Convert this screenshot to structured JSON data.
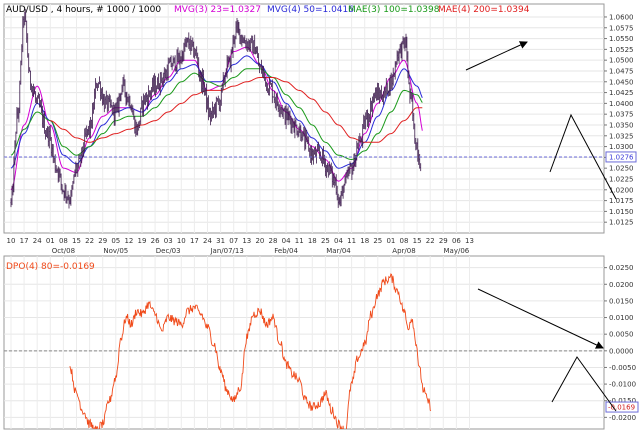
{
  "chart_data": [
    {
      "type": "line",
      "title": "AUD/USD , 4 hours, # 1000 / 1000",
      "indicators": [
        {
          "label": "MVG(3) 23=1.0327",
          "color": "#d400d4"
        },
        {
          "label": "MVG(4) 50=1.0416",
          "color": "#2b2bd8"
        },
        {
          "label": "MAE(3) 100=1.0398",
          "color": "#1a9a1a"
        },
        {
          "label": "MAE(4) 200=1.0394",
          "color": "#e02020"
        }
      ],
      "ylim": [
        1.01,
        1.063
      ],
      "y_ticks": [
        "1.0600",
        "1.0575",
        "1.0550",
        "1.0525",
        "1.0500",
        "1.0475",
        "1.0450",
        "1.0425",
        "1.0400",
        "1.0375",
        "1.0350",
        "1.0325",
        "1.0300",
        "1.0275",
        "1.0250",
        "1.0225",
        "1.0200",
        "1.0175",
        "1.0150",
        "1.0125"
      ],
      "y_tick_values": [
        1.06,
        1.0575,
        1.055,
        1.0525,
        1.05,
        1.0475,
        1.045,
        1.0425,
        1.04,
        1.0375,
        1.035,
        1.0325,
        1.03,
        1.0275,
        1.025,
        1.0225,
        1.02,
        1.0175,
        1.015,
        1.0125
      ],
      "current_price_label": "1.0276",
      "current_price": 1.0276,
      "x_ticks": [
        "10",
        "17",
        "24",
        "01",
        "08",
        "15",
        "22",
        "29",
        "05",
        "12",
        "19",
        "26",
        "03",
        "10",
        "17",
        "24",
        "31",
        "07",
        "13",
        "20",
        "28",
        "04",
        "11",
        "18",
        "25",
        "04",
        "11",
        "18",
        "25",
        "01",
        "08",
        "15",
        "22",
        "29",
        "06",
        "13"
      ],
      "x_tick_index": [
        0,
        1,
        2,
        3,
        4,
        5,
        6,
        7,
        8,
        9,
        10,
        11,
        12,
        13,
        14,
        15,
        16,
        17,
        18,
        19,
        20,
        21,
        22,
        23,
        24,
        25,
        26,
        27,
        28,
        29,
        30,
        31,
        32,
        33,
        34,
        35
      ],
      "month_labels": [
        {
          "label": "Oct/08",
          "tick": 4
        },
        {
          "label": "Nov/05",
          "tick": 8
        },
        {
          "label": "Dec/03",
          "tick": 12
        },
        {
          "label": "Jan/07/13",
          "tick": 16.5
        },
        {
          "label": "Feb/04",
          "tick": 21
        },
        {
          "label": "Mar/04",
          "tick": 25
        },
        {
          "label": "Apr/08",
          "tick": 30
        },
        {
          "label": "May/06",
          "tick": 34
        }
      ],
      "price_anchors": [
        [
          0,
          1.017
        ],
        [
          0.5,
          1.037
        ],
        [
          1,
          1.06
        ],
        [
          1.5,
          1.045
        ],
        [
          2,
          1.04
        ],
        [
          2.8,
          1.033
        ],
        [
          3.5,
          1.025
        ],
        [
          4,
          1.02
        ],
        [
          4.5,
          1.018
        ],
        [
          5,
          1.025
        ],
        [
          6,
          1.034
        ],
        [
          6.6,
          1.045
        ],
        [
          7.2,
          1.04
        ],
        [
          8,
          1.038
        ],
        [
          8.5,
          1.044
        ],
        [
          9,
          1.041
        ],
        [
          9.6,
          1.034
        ],
        [
          10.2,
          1.041
        ],
        [
          11,
          1.044
        ],
        [
          11.6,
          1.046
        ],
        [
          12.2,
          1.049
        ],
        [
          12.8,
          1.05
        ],
        [
          13.5,
          1.054
        ],
        [
          14,
          1.052
        ],
        [
          14.6,
          1.045
        ],
        [
          15.2,
          1.037
        ],
        [
          15.8,
          1.04
        ],
        [
          16.6,
          1.049
        ],
        [
          17.2,
          1.057
        ],
        [
          18,
          1.054
        ],
        [
          18.6,
          1.053
        ],
        [
          19,
          1.048
        ],
        [
          19.7,
          1.044
        ],
        [
          20.4,
          1.04
        ],
        [
          21,
          1.037
        ],
        [
          22,
          1.034
        ],
        [
          22.5,
          1.031
        ],
        [
          23,
          1.028
        ],
        [
          23.6,
          1.028
        ],
        [
          24.2,
          1.025
        ],
        [
          24.7,
          1.022
        ],
        [
          25.1,
          1.017
        ],
        [
          25.4,
          1.021
        ],
        [
          26,
          1.025
        ],
        [
          26.6,
          1.031
        ],
        [
          27.2,
          1.037
        ],
        [
          27.8,
          1.042
        ],
        [
          28.4,
          1.042
        ],
        [
          29,
          1.045
        ],
        [
          29.6,
          1.052
        ],
        [
          30.1,
          1.054
        ],
        [
          30.5,
          1.041
        ],
        [
          30.9,
          1.031
        ],
        [
          31.3,
          1.026
        ]
      ],
      "indicator_anchors": [
        [
          [
            0,
            1.02
          ],
          [
            1,
            1.035
          ],
          [
            2,
            1.044
          ],
          [
            3,
            1.035
          ],
          [
            4,
            1.025
          ],
          [
            5,
            1.024
          ],
          [
            6,
            1.032
          ],
          [
            7,
            1.037
          ],
          [
            8,
            1.039
          ],
          [
            9,
            1.039
          ],
          [
            10,
            1.038
          ],
          [
            11,
            1.042
          ],
          [
            12,
            1.046
          ],
          [
            13,
            1.05
          ],
          [
            14,
            1.05
          ],
          [
            15,
            1.043
          ],
          [
            16,
            1.044
          ],
          [
            17,
            1.052
          ],
          [
            18,
            1.053
          ],
          [
            19,
            1.049
          ],
          [
            20,
            1.043
          ],
          [
            21,
            1.038
          ],
          [
            22,
            1.034
          ],
          [
            23,
            1.03
          ],
          [
            24,
            1.027
          ],
          [
            25,
            1.022
          ],
          [
            26,
            1.025
          ],
          [
            27,
            1.033
          ],
          [
            28,
            1.04
          ],
          [
            29,
            1.046
          ],
          [
            30,
            1.05
          ],
          [
            31,
            1.04
          ],
          [
            31.5,
            1.033
          ]
        ],
        [
          [
            0,
            1.025
          ],
          [
            1,
            1.033
          ],
          [
            2,
            1.04
          ],
          [
            3,
            1.036
          ],
          [
            4,
            1.028
          ],
          [
            5,
            1.026
          ],
          [
            6,
            1.03
          ],
          [
            7,
            1.035
          ],
          [
            8,
            1.038
          ],
          [
            9,
            1.039
          ],
          [
            10,
            1.038
          ],
          [
            11,
            1.041
          ],
          [
            12,
            1.045
          ],
          [
            13,
            1.048
          ],
          [
            14,
            1.049
          ],
          [
            15,
            1.045
          ],
          [
            16,
            1.045
          ],
          [
            17,
            1.049
          ],
          [
            18,
            1.051
          ],
          [
            19,
            1.049
          ],
          [
            20,
            1.045
          ],
          [
            21,
            1.04
          ],
          [
            22,
            1.036
          ],
          [
            23,
            1.032
          ],
          [
            24,
            1.029
          ],
          [
            25,
            1.025
          ],
          [
            26,
            1.026
          ],
          [
            27,
            1.031
          ],
          [
            28,
            1.037
          ],
          [
            29,
            1.043
          ],
          [
            30,
            1.048
          ],
          [
            31,
            1.044
          ],
          [
            31.5,
            1.041
          ]
        ],
        [
          [
            0,
            1.028
          ],
          [
            1,
            1.034
          ],
          [
            2,
            1.038
          ],
          [
            3,
            1.036
          ],
          [
            4,
            1.03
          ],
          [
            5,
            1.028
          ],
          [
            6,
            1.03
          ],
          [
            7,
            1.033
          ],
          [
            8,
            1.036
          ],
          [
            9,
            1.037
          ],
          [
            10,
            1.037
          ],
          [
            11,
            1.039
          ],
          [
            12,
            1.042
          ],
          [
            13,
            1.045
          ],
          [
            14,
            1.047
          ],
          [
            15,
            1.045
          ],
          [
            16,
            1.044
          ],
          [
            17,
            1.046
          ],
          [
            18,
            1.048
          ],
          [
            19,
            1.048
          ],
          [
            20,
            1.046
          ],
          [
            21,
            1.042
          ],
          [
            22,
            1.039
          ],
          [
            23,
            1.035
          ],
          [
            24,
            1.031
          ],
          [
            25,
            1.028
          ],
          [
            26,
            1.027
          ],
          [
            27,
            1.029
          ],
          [
            28,
            1.033
          ],
          [
            29,
            1.038
          ],
          [
            30,
            1.043
          ],
          [
            31,
            1.042
          ],
          [
            31.5,
            1.04
          ]
        ],
        [
          [
            3,
            1.036
          ],
          [
            4,
            1.034
          ],
          [
            5,
            1.032
          ],
          [
            6,
            1.031
          ],
          [
            7,
            1.032
          ],
          [
            8,
            1.033
          ],
          [
            9,
            1.034
          ],
          [
            10,
            1.035
          ],
          [
            11,
            1.036
          ],
          [
            12,
            1.038
          ],
          [
            13,
            1.04
          ],
          [
            14,
            1.042
          ],
          [
            15,
            1.043
          ],
          [
            16,
            1.043
          ],
          [
            17,
            1.044
          ],
          [
            18,
            1.045
          ],
          [
            19,
            1.046
          ],
          [
            20,
            1.046
          ],
          [
            21,
            1.045
          ],
          [
            22,
            1.043
          ],
          [
            23,
            1.041
          ],
          [
            24,
            1.038
          ],
          [
            25,
            1.035
          ],
          [
            26,
            1.032
          ],
          [
            27,
            1.031
          ],
          [
            28,
            1.031
          ],
          [
            29,
            1.033
          ],
          [
            30,
            1.036
          ],
          [
            31,
            1.039
          ],
          [
            31.5,
            1.039
          ]
        ]
      ]
    },
    {
      "type": "line",
      "title": "DPO(4) 80=-0.0169",
      "color": "#f04a1a",
      "ylim": [
        -0.0235,
        0.0285
      ],
      "y_ticks": [
        "0.0250",
        "0.0200",
        "0.0150",
        "0.0100",
        "0.0050",
        "0.0000",
        "-0.0050",
        "-0.0100",
        "-0.0150",
        "-0.0200"
      ],
      "y_tick_values": [
        0.025,
        0.02,
        0.015,
        0.01,
        0.005,
        0,
        -0.005,
        -0.01,
        -0.015,
        -0.02
      ],
      "current_value_label": "-0.0169",
      "current_value": -0.0169,
      "series_anchors": [
        [
          4.5,
          -0.005
        ],
        [
          5,
          -0.013
        ],
        [
          5.5,
          -0.018
        ],
        [
          6,
          -0.022
        ],
        [
          6.5,
          -0.024
        ],
        [
          7,
          -0.022
        ],
        [
          7.5,
          -0.015
        ],
        [
          8,
          -0.008
        ],
        [
          8.4,
          0.004
        ],
        [
          8.8,
          0.01
        ],
        [
          9.2,
          0.008
        ],
        [
          9.6,
          0.012
        ],
        [
          10,
          0.011
        ],
        [
          10.5,
          0.014
        ],
        [
          11,
          0.011
        ],
        [
          11.5,
          0.006
        ],
        [
          12,
          0.01
        ],
        [
          12.5,
          0.009
        ],
        [
          13,
          0.008
        ],
        [
          13.5,
          0.012
        ],
        [
          14,
          0.013
        ],
        [
          14.5,
          0.011
        ],
        [
          15,
          0.007
        ],
        [
          15.5,
          0.002
        ],
        [
          16,
          -0.006
        ],
        [
          16.5,
          -0.012
        ],
        [
          17,
          -0.015
        ],
        [
          17.5,
          -0.011
        ],
        [
          18,
          0.004
        ],
        [
          18.5,
          0.011
        ],
        [
          19,
          0.012
        ],
        [
          19.5,
          0.008
        ],
        [
          20,
          0.01
        ],
        [
          20.5,
          0.003
        ],
        [
          21,
          -0.004
        ],
        [
          21.5,
          -0.007
        ],
        [
          22,
          -0.009
        ],
        [
          22.5,
          -0.015
        ],
        [
          23,
          -0.017
        ],
        [
          23.5,
          -0.016
        ],
        [
          24,
          -0.013
        ],
        [
          24.5,
          -0.018
        ],
        [
          25,
          -0.022
        ],
        [
          25.5,
          -0.024
        ],
        [
          26,
          -0.01
        ],
        [
          26.5,
          -0.002
        ],
        [
          27,
          0.002
        ],
        [
          27.5,
          0.011
        ],
        [
          28,
          0.017
        ],
        [
          28.5,
          0.021
        ],
        [
          29,
          0.022
        ],
        [
          29.5,
          0.018
        ],
        [
          30,
          0.012
        ],
        [
          30.3,
          0.007
        ],
        [
          30.6,
          0.01
        ],
        [
          30.9,
          0.003
        ],
        [
          31.2,
          -0.006
        ],
        [
          31.5,
          -0.012
        ],
        [
          31.8,
          -0.015
        ],
        [
          32.1,
          -0.017
        ]
      ]
    }
  ]
}
